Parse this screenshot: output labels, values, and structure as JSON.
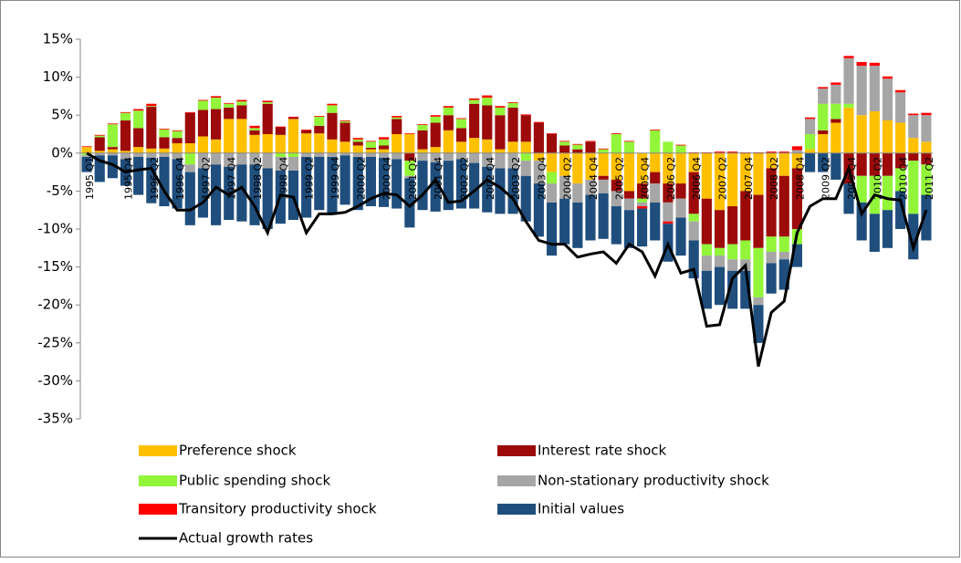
{
  "chart_data": {
    "type": "bar",
    "stacked": true,
    "grid": false,
    "categories": [
      "1995 Q1",
      null,
      null,
      "1995 Q4",
      null,
      "1996 Q2",
      null,
      "1996 Q4",
      null,
      "1997 Q2",
      null,
      "1997 Q4",
      null,
      "1998 Q2",
      null,
      "1998 Q4",
      null,
      "1999 Q2",
      null,
      "1999 Q4",
      null,
      "2000 Q2",
      null,
      "2000 Q4",
      null,
      "2001 Q2",
      null,
      "2001 Q4",
      null,
      "2002 Q2",
      null,
      "2002 Q4",
      null,
      "2003 Q2",
      null,
      "2003 Q4",
      null,
      "2004 Q2",
      null,
      "2004 Q4",
      null,
      "2005 Q2",
      null,
      "2005 Q4",
      null,
      "2006 Q2",
      null,
      "2006 Q4",
      null,
      "2007 Q2",
      null,
      "2007 Q4",
      null,
      "2008 Q2",
      null,
      "2008 Q4",
      null,
      "2009 Q2",
      null,
      "2009 Q4",
      null,
      "2010 Q2",
      null,
      "2010 Q4",
      null,
      "2011 Q2"
    ],
    "ylim": [
      -35,
      15
    ],
    "yticks": [
      {
        "value": -35,
        "label": "-35%"
      },
      {
        "value": -30,
        "label": "-30%"
      },
      {
        "value": -25,
        "label": "-25%"
      },
      {
        "value": -20,
        "label": "-20%"
      },
      {
        "value": -15,
        "label": "-15%"
      },
      {
        "value": -10,
        "label": "-10%"
      },
      {
        "value": -5,
        "label": "-5%"
      },
      {
        "value": 0,
        "label": "0%"
      },
      {
        "value": 5,
        "label": "5%"
      },
      {
        "value": 10,
        "label": "10%"
      },
      {
        "value": 15,
        "label": "15%"
      }
    ],
    "series": [
      {
        "name": "Preference shock",
        "color": "#ffc000",
        "values": [
          0.8,
          0.3,
          0.5,
          0.3,
          0.8,
          0.6,
          0.6,
          1.3,
          1.3,
          2.2,
          1.8,
          4.5,
          4.5,
          2.4,
          2.5,
          2.4,
          4.5,
          2.6,
          2.6,
          1.8,
          1.5,
          1,
          0.5,
          0.5,
          2.5,
          2.5,
          0.5,
          0.8,
          3,
          1.5,
          2,
          1.8,
          0.5,
          1.5,
          1.5,
          -1,
          -2.5,
          -3,
          -4,
          -3.5,
          -3,
          -3.5,
          -5,
          -4,
          -2.5,
          -4,
          -4,
          -2.5,
          -6,
          -7.5,
          -7,
          -5,
          -5.5,
          -2,
          -3,
          -2,
          0.5,
          2.5,
          4,
          6,
          5,
          5.5,
          4.3,
          4,
          2,
          1.5
        ]
      },
      {
        "name": "Interest rate shock",
        "color": "#9c0a0a",
        "values": [
          0,
          1.8,
          0.3,
          4,
          2.5,
          5.5,
          1.5,
          0.7,
          4,
          3.5,
          4,
          1.5,
          1.8,
          0.6,
          4,
          1,
          0.2,
          0.4,
          1,
          3.5,
          2.5,
          0.5,
          0.2,
          0.5,
          2,
          -1,
          2.5,
          3.2,
          2,
          1.8,
          4.5,
          4.5,
          4.5,
          4.5,
          3.5,
          4,
          2.5,
          1,
          0.5,
          1.5,
          -0.5,
          -1.5,
          -1,
          -2,
          -1.5,
          -2.5,
          -2,
          -5.5,
          -6,
          -5,
          -5,
          -6.5,
          -7,
          -9,
          -8,
          -8,
          0,
          0.5,
          0.5,
          -4,
          -3,
          -3,
          -3,
          -2,
          -1,
          -1.5
        ]
      },
      {
        "name": "Public spending shock",
        "color": "#92f53a",
        "values": [
          -0.3,
          0.2,
          3,
          1,
          2.3,
          0.1,
          1,
          0.9,
          -1.5,
          1.2,
          1.5,
          0.5,
          0.5,
          0.3,
          0.2,
          -0.5,
          -0.5,
          0,
          1.2,
          1,
          0.2,
          0.3,
          0.8,
          0.8,
          0.2,
          -2,
          0.7,
          0.8,
          1,
          1.2,
          0.5,
          1,
          1,
          0.6,
          -1,
          0,
          -1.5,
          0.5,
          0.6,
          0,
          0.5,
          2.5,
          1.5,
          -0.5,
          3,
          1.5,
          1,
          -1,
          -1.5,
          -1,
          -2,
          -2.5,
          -6.5,
          -2,
          -2,
          -2,
          2,
          3.5,
          2,
          0.5,
          -3.5,
          -5,
          -4.5,
          -3,
          -7,
          -4
        ]
      },
      {
        "name": "Non-stationary productivity shock",
        "color": "#a6a6a6",
        "values": [
          -0.2,
          -0.3,
          -0.3,
          -0.8,
          -0.5,
          -0.6,
          -0.5,
          -0.8,
          -1,
          -2,
          -1.5,
          -1.8,
          -1.5,
          -1.5,
          -2,
          -1.8,
          -1.8,
          -0.5,
          -0.5,
          -0.5,
          -0.3,
          -0.5,
          -0.5,
          -0.6,
          -0.8,
          -0.3,
          -1,
          -1.2,
          -1,
          -0.8,
          -1.3,
          -1.8,
          -2,
          -2,
          -2,
          -3,
          -2.5,
          -3,
          -2.5,
          -2,
          -1.8,
          -2,
          -1.5,
          -0.5,
          -2.5,
          -2.5,
          -2.5,
          -2.5,
          -2,
          -1.5,
          -1.5,
          -1.5,
          -1,
          -1.5,
          -1,
          0.4,
          2,
          2,
          2.5,
          6,
          6.5,
          6,
          5.5,
          4,
          3,
          3.5
        ]
      },
      {
        "name": "Transitory productivity shock",
        "color": "#ff0000",
        "values": [
          0.1,
          0.1,
          0.1,
          0.1,
          0.2,
          0.3,
          0.1,
          0.1,
          0.1,
          0.1,
          0.2,
          0.1,
          0.2,
          0.3,
          0.2,
          0.1,
          0.1,
          0.1,
          0.1,
          0.2,
          0.1,
          0.2,
          0.1,
          0.3,
          0.2,
          0.1,
          0.1,
          0.2,
          0.2,
          0.1,
          0.2,
          0.3,
          0.2,
          0.1,
          0.1,
          0.1,
          0.1,
          0.1,
          0.1,
          0.1,
          0.1,
          0.1,
          0.1,
          -0.3,
          0.1,
          -0.3,
          0.1,
          0.1,
          0.1,
          0.2,
          0.2,
          0.1,
          0.1,
          0.2,
          0.2,
          0.5,
          0.2,
          0.2,
          0.3,
          0.3,
          0.5,
          0.4,
          0.3,
          0.3,
          0.2,
          0.3
        ]
      },
      {
        "name": "Initial values",
        "color": "#1f4e7d",
        "values": [
          -2,
          -3.5,
          -3,
          -3.5,
          -5,
          -6,
          -6.5,
          -6.5,
          -7,
          -6.5,
          -8,
          -7,
          -7.5,
          -8,
          -8,
          -7,
          -6.5,
          -8,
          -7,
          -7.5,
          -6.5,
          -7,
          -6.5,
          -6.5,
          -6.5,
          -6.5,
          -6.5,
          -6.5,
          -6.5,
          -6.5,
          -6,
          -6,
          -6,
          -6,
          -6,
          -7,
          -7,
          -6,
          -6,
          -6,
          -6,
          -5,
          -5,
          -5,
          -5,
          -5,
          -5,
          -5,
          -5,
          -5,
          -5,
          -5,
          -5,
          -4,
          -4,
          -3,
          -2.5,
          -2.5,
          -3.5,
          -4,
          -5,
          -5,
          -5,
          -5,
          -6,
          -6
        ]
      },
      {
        "name": "Actual growth rates",
        "color": "#000000",
        "type": "line",
        "values": [
          0,
          -1,
          -1.5,
          -2.5,
          -2.2,
          -2,
          -5,
          -7.5,
          -7.5,
          -6.5,
          -4.5,
          -5.5,
          -4.5,
          -7,
          -10.5,
          -5.5,
          -5.8,
          -10.5,
          -8,
          -8,
          -7.8,
          -7,
          -6,
          -5.3,
          -5.5,
          -7,
          -5.5,
          -3.5,
          -6.5,
          -6.3,
          -5,
          -3.5,
          -4.5,
          -6,
          -9,
          -11.5,
          -12,
          -12,
          -13.7,
          -13.3,
          -13,
          -14.5,
          -12,
          -13,
          -16.2,
          -12,
          -15.8,
          -15.3,
          -22.8,
          -22.6,
          -16.5,
          -14.8,
          -28.1,
          -21,
          -19.5,
          -10.5,
          -7,
          -6,
          -6,
          -2,
          -8,
          -5.5,
          -6,
          -6.2,
          -12.5,
          -7.5
        ]
      }
    ]
  }
}
